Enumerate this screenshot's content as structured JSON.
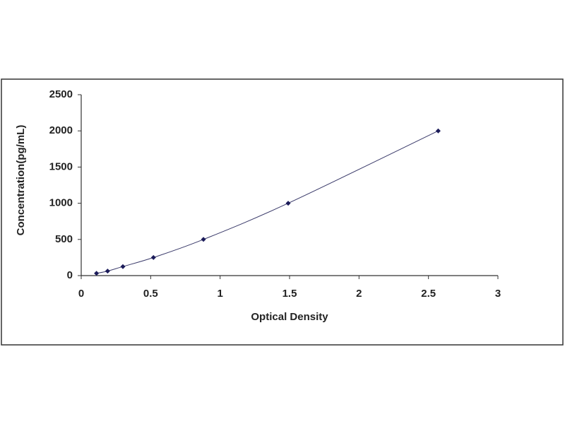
{
  "chart_data": {
    "type": "scatter",
    "x_label": "Optical Density",
    "y_label": "Concentration(pg/mL)",
    "x": [
      0.11,
      0.19,
      0.3,
      0.52,
      0.88,
      1.49,
      2.57
    ],
    "series": [
      {
        "color": "#1c1c5a",
        "values": [
          31.25,
          62.5,
          125,
          250,
          500,
          1000,
          2000
        ]
      }
    ],
    "smooth_line": true,
    "grid": false,
    "xlim": [
      0,
      3
    ],
    "xticks": [
      0,
      0.5,
      1,
      1.5,
      2,
      2.5,
      3
    ],
    "ylim": [
      0,
      2500
    ],
    "yticks": [
      0,
      500,
      1000,
      1500,
      2000,
      2500
    ]
  }
}
